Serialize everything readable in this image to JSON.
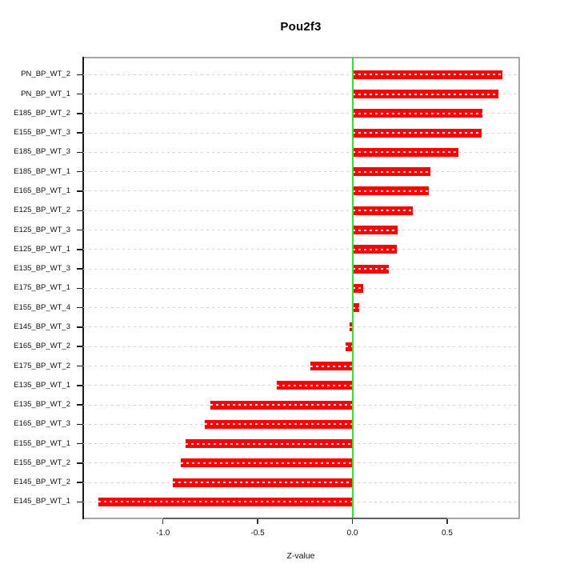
{
  "chart_data": {
    "type": "bar",
    "orientation": "horizontal",
    "title": "Pou2f3",
    "xlabel": "Z-value",
    "categories": [
      "PN_BP_WT_2",
      "PN_BP_WT_1",
      "E185_BP_WT_2",
      "E155_BP_WT_3",
      "E185_BP_WT_3",
      "E185_BP_WT_1",
      "E165_BP_WT_1",
      "E125_BP_WT_2",
      "E125_BP_WT_3",
      "E125_BP_WT_1",
      "E135_BP_WT_3",
      "E175_BP_WT_1",
      "E155_BP_WT_4",
      "E145_BP_WT_3",
      "E165_BP_WT_2",
      "E175_BP_WT_2",
      "E135_BP_WT_1",
      "E135_BP_WT_2",
      "E165_BP_WT_3",
      "E155_BP_WT_1",
      "E155_BP_WT_2",
      "E145_BP_WT_2",
      "E145_BP_WT_1"
    ],
    "values": [
      0.79,
      0.77,
      0.685,
      0.68,
      0.56,
      0.41,
      0.405,
      0.32,
      0.24,
      0.235,
      0.19,
      0.055,
      0.035,
      -0.015,
      -0.035,
      -0.22,
      -0.4,
      -0.75,
      -0.78,
      -0.88,
      -0.905,
      -0.95,
      -1.34
    ],
    "xlim": [
      -1.421,
      0.876
    ],
    "xticks": {
      "values": [
        -1.0,
        -0.5,
        0.0,
        0.5
      ],
      "labels": [
        "-1.0",
        "-0.5",
        "0.0",
        "0.5"
      ]
    },
    "grid": true,
    "legend": false,
    "colors": {
      "bar": "#ff0000",
      "zero_line": "#22ee22",
      "grid": "#d4d4d4",
      "box": "#a6a6a6",
      "axis": "#1a1a1a"
    }
  }
}
